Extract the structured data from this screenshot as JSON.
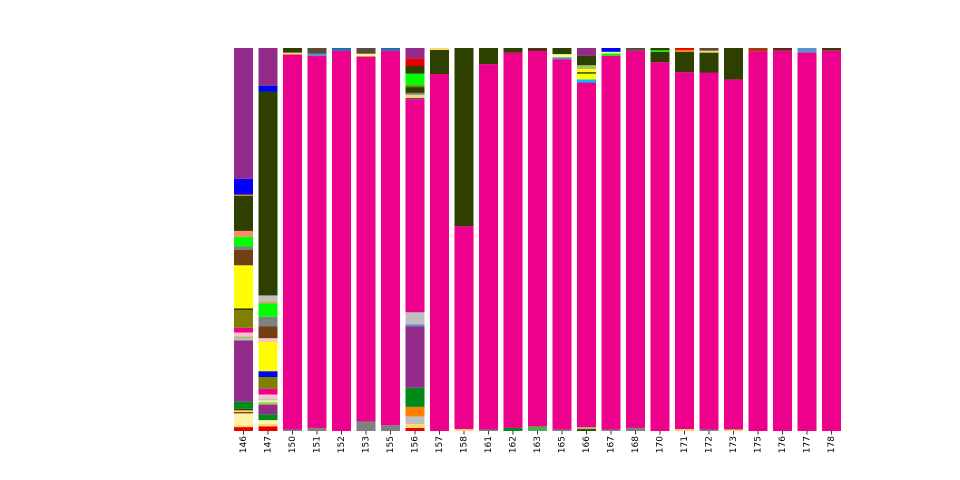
{
  "chart_data": {
    "type": "bar",
    "stacked": true,
    "normalized": true,
    "ylim": [
      0,
      1
    ],
    "grid": false,
    "legend": "none",
    "xlabel": "",
    "ylabel": "",
    "title": "",
    "categories": [
      "146",
      "147",
      "150",
      "151",
      "152",
      "153",
      "155",
      "156",
      "157",
      "158",
      "161",
      "162",
      "163",
      "165",
      "166",
      "167",
      "168",
      "170",
      "171",
      "172",
      "173",
      "175",
      "176",
      "177",
      "178"
    ],
    "bars": [
      {
        "category": "146",
        "segments": [
          {
            "color": "#e60000",
            "value": 0.01
          },
          {
            "color": "#ffd966",
            "value": 0.005
          },
          {
            "color": "#fff2a8",
            "value": 0.03
          },
          {
            "color": "#7a4a1a",
            "value": 0.004
          },
          {
            "color": "#ffd966",
            "value": 0.004
          },
          {
            "color": "#2d4000",
            "value": 0.004
          },
          {
            "color": "#008a1a",
            "value": 0.018
          },
          {
            "color": "#922b8a",
            "value": 0.157
          },
          {
            "color": "#bfbfbf",
            "value": 0.005
          },
          {
            "color": "#a4c462",
            "value": 0.005
          },
          {
            "color": "#ffc0cb",
            "value": 0.01
          },
          {
            "color": "#ec008c",
            "value": 0.012
          },
          {
            "color": "#808000",
            "value": 0.045
          },
          {
            "color": "#2d4000",
            "value": 0.005
          },
          {
            "color": "#ffff00",
            "value": 0.11
          },
          {
            "color": "#704010",
            "value": 0.04
          },
          {
            "color": "#808080",
            "value": 0.008
          },
          {
            "color": "#00ff00",
            "value": 0.025
          },
          {
            "color": "#ff8a6a",
            "value": 0.015
          },
          {
            "color": "#2d4000",
            "value": 0.09
          },
          {
            "color": "#ff8000",
            "value": 0.003
          },
          {
            "color": "#0000ff",
            "value": 0.04
          },
          {
            "color": "#922b8a",
            "value": 0.335
          }
        ]
      },
      {
        "category": "147",
        "segments": [
          {
            "color": "#e60000",
            "value": 0.012
          },
          {
            "color": "#ffd966",
            "value": 0.006
          },
          {
            "color": "#fff2a8",
            "value": 0.01
          },
          {
            "color": "#008a1a",
            "value": 0.015
          },
          {
            "color": "#922b8a",
            "value": 0.025
          },
          {
            "color": "#a4c462",
            "value": 0.006
          },
          {
            "color": "#d8f0a0",
            "value": 0.006
          },
          {
            "color": "#bfbfbf",
            "value": 0.004
          },
          {
            "color": "#ffc0cb",
            "value": 0.01
          },
          {
            "color": "#ec008c",
            "value": 0.015
          },
          {
            "color": "#808000",
            "value": 0.03
          },
          {
            "color": "#0000ff",
            "value": 0.015
          },
          {
            "color": "#ffff00",
            "value": 0.075
          },
          {
            "color": "#ffc0cb",
            "value": 0.01
          },
          {
            "color": "#704010",
            "value": 0.03
          },
          {
            "color": "#808080",
            "value": 0.025
          },
          {
            "color": "#00ff00",
            "value": 0.035
          },
          {
            "color": "#ff8a6a",
            "value": 0.005
          },
          {
            "color": "#bfbfbf",
            "value": 0.015
          },
          {
            "color": "#2d4000",
            "value": 0.525
          },
          {
            "color": "#0000ff",
            "value": 0.015
          },
          {
            "color": "#922b8a",
            "value": 0.097
          }
        ]
      },
      {
        "category": "150",
        "segments": [
          {
            "color": "#808080",
            "value": 0.004
          },
          {
            "color": "#ec008c",
            "value": 0.979
          },
          {
            "color": "#ffd966",
            "value": 0.005
          },
          {
            "color": "#2d4000",
            "value": 0.012
          }
        ]
      },
      {
        "category": "151",
        "segments": [
          {
            "color": "#808080",
            "value": 0.008
          },
          {
            "color": "#ec008c",
            "value": 0.971
          },
          {
            "color": "#5a8fd0",
            "value": 0.006
          },
          {
            "color": "#5a4a3a",
            "value": 0.015
          }
        ]
      },
      {
        "category": "152",
        "segments": [
          {
            "color": "#ec008c",
            "value": 0.993
          },
          {
            "color": "#1a6fb0",
            "value": 0.007
          }
        ]
      },
      {
        "category": "153",
        "segments": [
          {
            "color": "#808080",
            "value": 0.025
          },
          {
            "color": "#ec008c",
            "value": 0.953
          },
          {
            "color": "#ffff80",
            "value": 0.007
          },
          {
            "color": "#5a4a3a",
            "value": 0.015
          }
        ]
      },
      {
        "category": "155",
        "segments": [
          {
            "color": "#808080",
            "value": 0.015
          },
          {
            "color": "#ec008c",
            "value": 0.978
          },
          {
            "color": "#1a6fb0",
            "value": 0.007
          }
        ]
      },
      {
        "category": "156",
        "segments": [
          {
            "color": "#e60000",
            "value": 0.008
          },
          {
            "color": "#ffd966",
            "value": 0.01
          },
          {
            "color": "#bfbfbf",
            "value": 0.02
          },
          {
            "color": "#ff8000",
            "value": 0.025
          },
          {
            "color": "#008a1a",
            "value": 0.05
          },
          {
            "color": "#922b8a",
            "value": 0.16
          },
          {
            "color": "#5a8fd0",
            "value": 0.005
          },
          {
            "color": "#bfbfbf",
            "value": 0.032
          },
          {
            "color": "#ec008c",
            "value": 0.555
          },
          {
            "color": "#922b8a",
            "value": 0.005
          },
          {
            "color": "#ffd966",
            "value": 0.008
          },
          {
            "color": "#808080",
            "value": 0.005
          },
          {
            "color": "#2d4000",
            "value": 0.015
          },
          {
            "color": "#808000",
            "value": 0.005
          },
          {
            "color": "#00ff00",
            "value": 0.03
          },
          {
            "color": "#2d4000",
            "value": 0.02
          },
          {
            "color": "#e60000",
            "value": 0.02
          },
          {
            "color": "#922b8a",
            "value": 0.027
          }
        ]
      },
      {
        "category": "157",
        "segments": [
          {
            "color": "#ec008c",
            "value": 0.932
          },
          {
            "color": "#2d4000",
            "value": 0.063
          },
          {
            "color": "#ffd966",
            "value": 0.005
          }
        ]
      },
      {
        "category": "158",
        "segments": [
          {
            "color": "#ffd966",
            "value": 0.005
          },
          {
            "color": "#ec008c",
            "value": 0.53
          },
          {
            "color": "#2d4000",
            "value": 0.465
          }
        ]
      },
      {
        "category": "161",
        "segments": [
          {
            "color": "#808080",
            "value": 0.004
          },
          {
            "color": "#ec008c",
            "value": 0.954
          },
          {
            "color": "#2d4000",
            "value": 0.042
          }
        ]
      },
      {
        "category": "162",
        "segments": [
          {
            "color": "#008a1a",
            "value": 0.008
          },
          {
            "color": "#ec008c",
            "value": 0.98
          },
          {
            "color": "#2d4000",
            "value": 0.012
          }
        ]
      },
      {
        "category": "163",
        "segments": [
          {
            "color": "#4caf50",
            "value": 0.012
          },
          {
            "color": "#ec008c",
            "value": 0.98
          },
          {
            "color": "#5a2a1a",
            "value": 0.008
          }
        ]
      },
      {
        "category": "165",
        "segments": [
          {
            "color": "#808080",
            "value": 0.004
          },
          {
            "color": "#ec008c",
            "value": 0.966
          },
          {
            "color": "#5a8fd0",
            "value": 0.006
          },
          {
            "color": "#ffff80",
            "value": 0.008
          },
          {
            "color": "#2d4000",
            "value": 0.016
          }
        ]
      },
      {
        "category": "166",
        "segments": [
          {
            "color": "#2d4000",
            "value": 0.005
          },
          {
            "color": "#a4c462",
            "value": 0.005
          },
          {
            "color": "#ec008c",
            "value": 0.9
          },
          {
            "color": "#00bfff",
            "value": 0.008
          },
          {
            "color": "#ffff00",
            "value": 0.015
          },
          {
            "color": "#2d4000",
            "value": 0.004
          },
          {
            "color": "#ffff00",
            "value": 0.008
          },
          {
            "color": "#a4c462",
            "value": 0.01
          },
          {
            "color": "#2d4000",
            "value": 0.025
          },
          {
            "color": "#922b8a",
            "value": 0.02
          }
        ]
      },
      {
        "category": "167",
        "segments": [
          {
            "color": "#808080",
            "value": 0.004
          },
          {
            "color": "#ec008c",
            "value": 0.976
          },
          {
            "color": "#00ff00",
            "value": 0.006
          },
          {
            "color": "#ffff80",
            "value": 0.004
          },
          {
            "color": "#0000ff",
            "value": 0.01
          }
        ]
      },
      {
        "category": "168",
        "segments": [
          {
            "color": "#808080",
            "value": 0.008
          },
          {
            "color": "#ec008c",
            "value": 0.985
          },
          {
            "color": "#5a4a3a",
            "value": 0.007
          }
        ]
      },
      {
        "category": "170",
        "segments": [
          {
            "color": "#ec008c",
            "value": 0.963
          },
          {
            "color": "#2d4000",
            "value": 0.027
          },
          {
            "color": "#00ff00",
            "value": 0.004
          },
          {
            "color": "#2d4000",
            "value": 0.006
          }
        ]
      },
      {
        "category": "171",
        "segments": [
          {
            "color": "#ffd966",
            "value": 0.005
          },
          {
            "color": "#ec008c",
            "value": 0.932
          },
          {
            "color": "#2d4000",
            "value": 0.053
          },
          {
            "color": "#ff8000",
            "value": 0.005
          },
          {
            "color": "#e60000",
            "value": 0.005
          }
        ]
      },
      {
        "category": "172",
        "segments": [
          {
            "color": "#808080",
            "value": 0.004
          },
          {
            "color": "#ec008c",
            "value": 0.932
          },
          {
            "color": "#2d4000",
            "value": 0.052
          },
          {
            "color": "#ffd966",
            "value": 0.005
          },
          {
            "color": "#5a4a3a",
            "value": 0.007
          }
        ]
      },
      {
        "category": "173",
        "segments": [
          {
            "color": "#ffd966",
            "value": 0.004
          },
          {
            "color": "#ec008c",
            "value": 0.914
          },
          {
            "color": "#2d4000",
            "value": 0.082
          }
        ]
      },
      {
        "category": "175",
        "segments": [
          {
            "color": "#ec008c",
            "value": 0.99
          },
          {
            "color": "#b03020",
            "value": 0.01
          }
        ]
      },
      {
        "category": "176",
        "segments": [
          {
            "color": "#ec008c",
            "value": 0.993
          },
          {
            "color": "#5a2a1a",
            "value": 0.007
          }
        ]
      },
      {
        "category": "177",
        "segments": [
          {
            "color": "#ec008c",
            "value": 0.988
          },
          {
            "color": "#5a8fd0",
            "value": 0.012
          }
        ]
      },
      {
        "category": "178",
        "segments": [
          {
            "color": "#ec008c",
            "value": 0.994
          },
          {
            "color": "#2d4000",
            "value": 0.006
          }
        ]
      }
    ]
  }
}
